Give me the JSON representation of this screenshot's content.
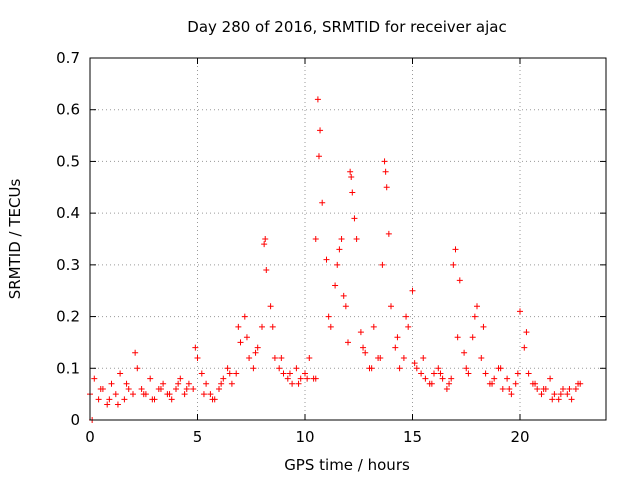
{
  "chart_data": {
    "type": "scatter",
    "title": "Day 280 of 2016, SRMTID for receiver ajac",
    "xlabel": "GPS time / hours",
    "ylabel": "SRMTID / TECUs",
    "xlim": [
      0,
      24
    ],
    "ylim": [
      0,
      0.7
    ],
    "xticks": [
      0,
      5,
      10,
      15,
      20
    ],
    "yticks": [
      0,
      0.1,
      0.2,
      0.3,
      0.4,
      0.5,
      0.6,
      0.7
    ],
    "xtick_labels": [
      "0",
      "5",
      "10",
      "15",
      "20"
    ],
    "ytick_labels": [
      "0",
      "0.1",
      "0.2",
      "0.3",
      "0.4",
      "0.5",
      "0.6",
      "0.7"
    ],
    "grid": true,
    "marker": "+",
    "marker_color": "#ff0000",
    "series": [
      {
        "name": "ajac",
        "x": [
          0.0,
          0.2,
          0.4,
          0.6,
          0.8,
          1.0,
          1.2,
          1.4,
          1.6,
          1.8,
          2.0,
          2.2,
          2.4,
          2.6,
          2.8,
          3.0,
          3.2,
          3.4,
          3.6,
          3.8,
          4.0,
          4.2,
          4.4,
          4.6,
          4.8,
          5.0,
          5.2,
          5.4,
          5.6,
          5.8,
          6.0,
          6.2,
          6.4,
          6.6,
          6.8,
          7.0,
          7.2,
          7.4,
          7.6,
          7.8,
          8.0,
          8.1,
          8.2,
          8.4,
          8.6,
          8.8,
          9.0,
          9.2,
          9.4,
          9.6,
          9.8,
          10.0,
          10.2,
          10.4,
          10.5,
          10.6,
          10.7,
          10.8,
          11.0,
          11.2,
          11.4,
          11.6,
          11.8,
          12.0,
          12.1,
          12.2,
          12.4,
          12.6,
          12.8,
          13.0,
          13.2,
          13.4,
          13.6,
          13.7,
          13.8,
          14.0,
          14.2,
          14.4,
          14.6,
          14.8,
          15.0,
          15.2,
          15.4,
          15.6,
          15.8,
          16.0,
          16.2,
          16.4,
          16.6,
          16.8,
          17.0,
          17.2,
          17.4,
          17.6,
          17.8,
          18.0,
          18.2,
          18.4,
          18.6,
          18.8,
          19.0,
          19.2,
          19.4,
          19.6,
          19.8,
          20.0,
          20.2,
          20.4,
          20.6,
          20.8,
          21.0,
          21.2,
          21.4,
          21.6,
          21.8,
          22.0,
          22.2,
          22.4,
          22.6,
          22.8,
          0.1,
          0.5,
          0.9,
          1.3,
          1.7,
          2.1,
          2.5,
          2.9,
          3.3,
          3.7,
          4.1,
          4.5,
          4.9,
          5.3,
          5.7,
          6.1,
          6.5,
          6.9,
          7.3,
          7.7,
          8.15,
          8.5,
          8.9,
          9.3,
          9.7,
          10.1,
          10.5,
          10.65,
          11.1,
          11.5,
          11.7,
          11.9,
          12.15,
          12.3,
          12.7,
          13.1,
          13.5,
          13.75,
          13.9,
          14.3,
          14.7,
          15.1,
          15.5,
          15.9,
          16.3,
          16.7,
          16.9,
          17.1,
          17.5,
          17.9,
          18.3,
          18.7,
          19.1,
          19.5,
          19.9,
          20.3,
          20.7,
          21.1,
          21.5,
          21.9,
          22.3,
          22.7
        ],
        "y": [
          0.05,
          0.08,
          0.04,
          0.06,
          0.03,
          0.07,
          0.05,
          0.09,
          0.04,
          0.06,
          0.05,
          0.1,
          0.06,
          0.05,
          0.08,
          0.04,
          0.06,
          0.07,
          0.05,
          0.04,
          0.06,
          0.08,
          0.05,
          0.07,
          0.06,
          0.12,
          0.09,
          0.07,
          0.05,
          0.04,
          0.06,
          0.08,
          0.1,
          0.07,
          0.09,
          0.15,
          0.2,
          0.12,
          0.1,
          0.14,
          0.18,
          0.34,
          0.29,
          0.22,
          0.12,
          0.1,
          0.09,
          0.08,
          0.07,
          0.1,
          0.08,
          0.09,
          0.12,
          0.08,
          0.35,
          0.62,
          0.56,
          0.42,
          0.31,
          0.18,
          0.26,
          0.33,
          0.24,
          0.15,
          0.48,
          0.44,
          0.35,
          0.17,
          0.13,
          0.1,
          0.18,
          0.12,
          0.3,
          0.5,
          0.45,
          0.22,
          0.14,
          0.1,
          0.12,
          0.18,
          0.25,
          0.1,
          0.09,
          0.08,
          0.07,
          0.09,
          0.1,
          0.08,
          0.06,
          0.08,
          0.33,
          0.27,
          0.13,
          0.09,
          0.16,
          0.22,
          0.12,
          0.09,
          0.07,
          0.08,
          0.1,
          0.06,
          0.08,
          0.05,
          0.07,
          0.21,
          0.14,
          0.09,
          0.07,
          0.06,
          0.05,
          0.06,
          0.08,
          0.05,
          0.04,
          0.06,
          0.05,
          0.04,
          0.06,
          0.07,
          0.0,
          0.06,
          0.04,
          0.03,
          0.07,
          0.13,
          0.05,
          0.04,
          0.06,
          0.05,
          0.07,
          0.06,
          0.14,
          0.05,
          0.04,
          0.07,
          0.09,
          0.18,
          0.16,
          0.13,
          0.35,
          0.18,
          0.12,
          0.09,
          0.07,
          0.08,
          0.08,
          0.51,
          0.2,
          0.3,
          0.35,
          0.22,
          0.47,
          0.39,
          0.14,
          0.1,
          0.12,
          0.48,
          0.36,
          0.16,
          0.2,
          0.11,
          0.12,
          0.07,
          0.09,
          0.07,
          0.3,
          0.16,
          0.1,
          0.2,
          0.18,
          0.07,
          0.1,
          0.06,
          0.09,
          0.17,
          0.07,
          0.06,
          0.04,
          0.05,
          0.06,
          0.07
        ]
      }
    ]
  }
}
